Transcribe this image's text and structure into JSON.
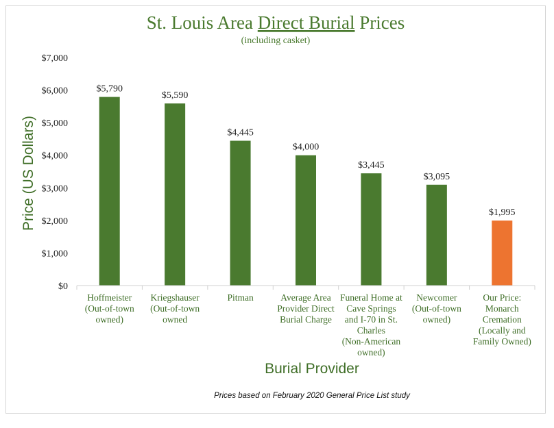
{
  "chart_data": {
    "type": "bar",
    "title_parts": [
      "St. Louis Area ",
      "Direct Burial",
      " Prices"
    ],
    "subtitle": "(including casket)",
    "xlabel": "Burial Provider",
    "ylabel": "Price (US Dollars)",
    "ylim": [
      0,
      7000
    ],
    "yticks": [
      0,
      1000,
      2000,
      3000,
      4000,
      5000,
      6000,
      7000
    ],
    "ytick_labels": [
      "$0",
      "$1,000",
      "$2,000",
      "$3,000",
      "$4,000",
      "$5,000",
      "$6,000",
      "$7,000"
    ],
    "grid": false,
    "legend": "none",
    "categories": [
      [
        "Hoffmeister",
        "(Out-of-town",
        "owned)"
      ],
      [
        "Kriegshauser",
        "(Out-of-town",
        "owned"
      ],
      [
        "Pitman"
      ],
      [
        "Average Area",
        "Provider Direct",
        "Burial Charge"
      ],
      [
        "Funeral Home at",
        "Cave Springs",
        "and I-70 in St.",
        "Charles",
        "(Non-American",
        "owned)"
      ],
      [
        "Newcomer",
        "(Out-of-town",
        "owned)"
      ],
      [
        "Our Price:",
        "Monarch",
        "Cremation",
        "(Locally and",
        "Family Owned)"
      ]
    ],
    "values": [
      5790,
      5590,
      4445,
      4000,
      3445,
      3095,
      1995
    ],
    "data_labels": [
      "$5,790",
      "$5,590",
      "$4,445",
      "$4,000",
      "$3,445",
      "$3,095",
      "$1,995"
    ],
    "bar_colors": [
      "#4a7a2f",
      "#4a7a2f",
      "#4a7a2f",
      "#4a7a2f",
      "#4a7a2f",
      "#4a7a2f",
      "#ed7430"
    ],
    "footnote": "Prices based on February 2020 General Price List study"
  },
  "colors": {
    "accent": "#4a7a2f",
    "highlight": "#ed7430",
    "axis": "#d0d0d0"
  }
}
